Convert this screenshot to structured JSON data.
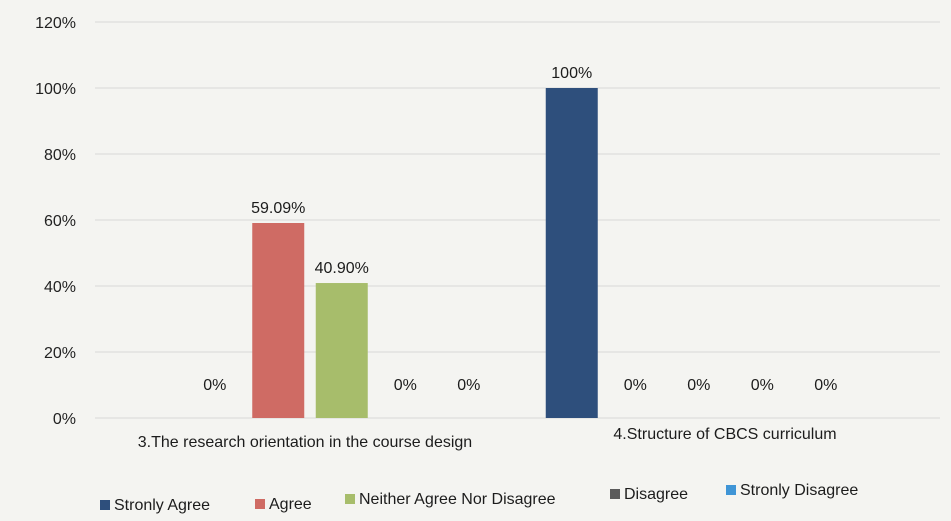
{
  "chart_data": {
    "type": "bar",
    "title": "",
    "xlabel": "",
    "ylabel": "",
    "ylim": [
      0,
      120
    ],
    "yticks": [
      0,
      20,
      40,
      60,
      80,
      100,
      120
    ],
    "ytick_format": "percent",
    "grid": true,
    "legend_position": "bottom",
    "categories": [
      "3.The research orientation in the course design",
      "4.Structure of CBCS curriculum"
    ],
    "series": [
      {
        "name": "Stronly Agree",
        "color": "#2e4f7c",
        "values": [
          0,
          100
        ],
        "labels": [
          "0%",
          "100%"
        ]
      },
      {
        "name": "Agree",
        "color": "#cf6b64",
        "values": [
          59.09,
          0
        ],
        "labels": [
          "59.09%",
          "0%"
        ]
      },
      {
        "name": "Neither Agree Nor Disagree",
        "color": "#a7bd6b",
        "values": [
          40.9,
          0
        ],
        "labels": [
          "40.90%",
          "0%"
        ]
      },
      {
        "name": "Disagree",
        "color": "#5a5a5a",
        "values": [
          0,
          0
        ],
        "labels": [
          "0%",
          "0%"
        ]
      },
      {
        "name": "Stronly Disagree",
        "color": "#3f95d6",
        "values": [
          0,
          0
        ],
        "labels": [
          "0%",
          "0%"
        ]
      }
    ]
  }
}
